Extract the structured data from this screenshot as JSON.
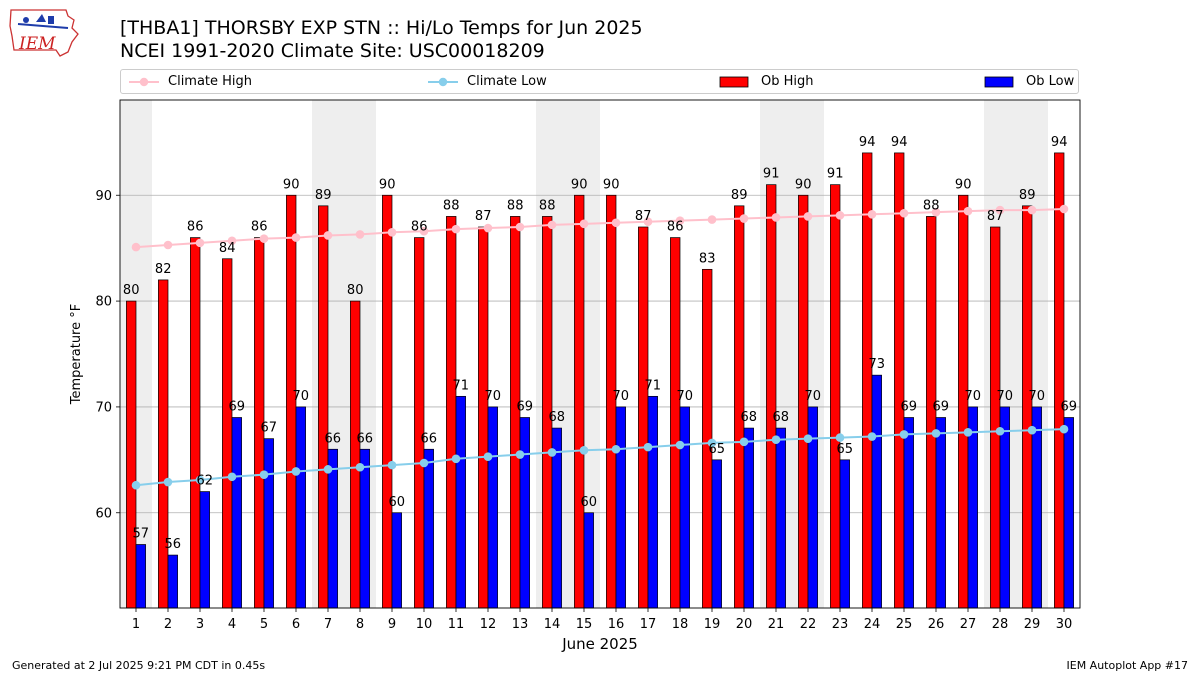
{
  "header": {
    "title_line1": "[THBA1] THORSBY EXP STN :: Hi/Lo Temps for Jun 2025",
    "title_line2": "NCEI 1991-2020 Climate Site: USC00018209",
    "logo_text": "IEM"
  },
  "footer": {
    "generated": "Generated at 2 Jul 2025 9:21 PM CDT in 0.45s",
    "app": "IEM Autoplot App #17"
  },
  "legend": {
    "climate_high": "Climate High",
    "climate_low": "Climate Low",
    "ob_high": "Ob High",
    "ob_low": "Ob Low"
  },
  "colors": {
    "ob_high": "#ff0000",
    "ob_low": "#0000ff",
    "climate_high": "#ffc0cb",
    "climate_low": "#87ceeb",
    "weekend_shade": "#eeeeee",
    "grid": "#b0b0b0"
  },
  "chart_data": {
    "type": "bar",
    "xlabel": "June 2025",
    "ylabel": "Temperature °F",
    "ylim": [
      51,
      99
    ],
    "yticks": [
      60,
      70,
      80,
      90
    ],
    "grid": "horizontal",
    "legend_position": "top",
    "weekend_shading_days": [
      1,
      7,
      8,
      14,
      15,
      21,
      22,
      28,
      29
    ],
    "categories": [
      1,
      2,
      3,
      4,
      5,
      6,
      7,
      8,
      9,
      10,
      11,
      12,
      13,
      14,
      15,
      16,
      17,
      18,
      19,
      20,
      21,
      22,
      23,
      24,
      25,
      26,
      27,
      28,
      29,
      30
    ],
    "series": [
      {
        "name": "Ob High",
        "kind": "bar",
        "values": [
          80,
          82,
          86,
          84,
          86,
          90,
          89,
          80,
          90,
          86,
          88,
          87,
          88,
          88,
          90,
          90,
          87,
          86,
          83,
          89,
          91,
          90,
          91,
          94,
          94,
          88,
          90,
          87,
          89,
          94
        ]
      },
      {
        "name": "Ob Low",
        "kind": "bar",
        "values": [
          57,
          56,
          62,
          69,
          67,
          70,
          66,
          66,
          60,
          66,
          71,
          70,
          69,
          68,
          60,
          70,
          71,
          70,
          65,
          68,
          68,
          70,
          65,
          73,
          69,
          69,
          70,
          70,
          70,
          69
        ]
      },
      {
        "name": "Climate High",
        "kind": "line",
        "values": [
          85.1,
          85.3,
          85.5,
          85.7,
          85.9,
          86.0,
          86.2,
          86.3,
          86.5,
          86.6,
          86.8,
          86.9,
          87.0,
          87.2,
          87.3,
          87.4,
          87.5,
          87.6,
          87.7,
          87.8,
          87.9,
          88.0,
          88.1,
          88.2,
          88.3,
          88.4,
          88.5,
          88.6,
          88.6,
          88.7
        ]
      },
      {
        "name": "Climate Low",
        "kind": "line",
        "values": [
          62.6,
          62.9,
          63.1,
          63.4,
          63.6,
          63.9,
          64.1,
          64.3,
          64.5,
          64.7,
          65.1,
          65.3,
          65.5,
          65.7,
          65.9,
          66.0,
          66.2,
          66.4,
          66.6,
          66.7,
          66.9,
          67.0,
          67.1,
          67.2,
          67.4,
          67.5,
          67.6,
          67.7,
          67.8,
          67.9
        ]
      }
    ]
  }
}
